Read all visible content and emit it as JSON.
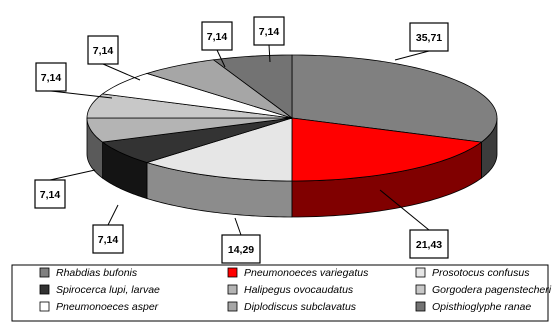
{
  "chart_data": {
    "type": "pie",
    "title": "",
    "slices": [
      {
        "name": "Rhabdias bufonis",
        "value": 35.71,
        "label": "35,71",
        "top": "#808080",
        "side": "#3c3c3c"
      },
      {
        "name": "Pneumonoeces variegatus",
        "value": 21.43,
        "label": "21,43",
        "top": "#ff0000",
        "side": "#800000"
      },
      {
        "name": "Prosotocus confusus",
        "value": 14.29,
        "label": "14,29",
        "top": "#e6e6e6",
        "side": "#8c8c8c"
      },
      {
        "name": "Spirocerca lupi, larvae",
        "value": 7.14,
        "label": "7,14",
        "top": "#333333",
        "side": "#141414"
      },
      {
        "name": "Halipegus ovocaudatus",
        "value": 7.14,
        "label": "7,14",
        "top": "#b4b4b4",
        "side": "#5a5a5a"
      },
      {
        "name": "Gorgodera pagenstecheri",
        "value": 7.14,
        "label": "7,14",
        "top": "#c8c8c8",
        "side": "#646464"
      },
      {
        "name": "Pneumonoeces asper",
        "value": 7.14,
        "label": "7,14",
        "top": "#ffffff",
        "side": "#969696"
      },
      {
        "name": "Diplodiscus subclavatus",
        "value": 7.14,
        "label": "7,14",
        "top": "#a6a6a6",
        "side": "#555555"
      },
      {
        "name": "Opisthioglyphe ranae",
        "value": 7.14,
        "label": "7,14",
        "top": "#737373",
        "side": "#3a3a3a"
      }
    ],
    "legend_placement": "bottom"
  }
}
